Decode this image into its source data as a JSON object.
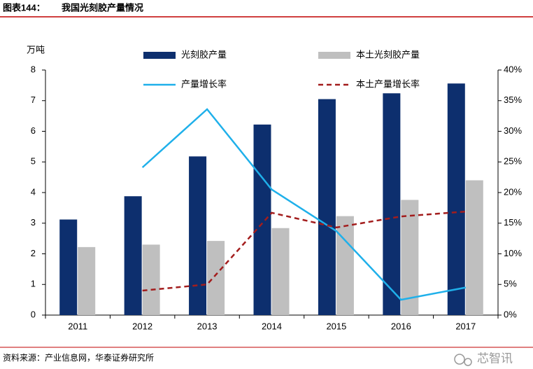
{
  "chart_data": {
    "type": "bar",
    "figure_label": "图表144：",
    "title": "我国光刻胶产量情况",
    "y_unit": "万吨",
    "categories": [
      "2011",
      "2012",
      "2013",
      "2014",
      "2015",
      "2016",
      "2017"
    ],
    "series": [
      {
        "name": "光刻胶产量",
        "type": "bar",
        "color": "#0d2f6e",
        "values": [
          3.12,
          3.88,
          5.18,
          6.22,
          7.05,
          7.24,
          7.56
        ]
      },
      {
        "name": "本土光刻胶产量",
        "type": "bar",
        "color": "#bfbfbf",
        "values": [
          2.22,
          2.3,
          2.42,
          2.84,
          3.23,
          3.76,
          4.4
        ]
      },
      {
        "name": "产量增长率",
        "type": "line",
        "axis": "y2",
        "color": "#1fb0ea",
        "dash": false,
        "values": [
          null,
          24.1,
          33.6,
          20.5,
          13.7,
          2.5,
          4.5
        ]
      },
      {
        "name": "本土产量增长率",
        "type": "line",
        "axis": "y2",
        "color": "#a31d1d",
        "dash": true,
        "values": [
          null,
          4.0,
          5.0,
          16.7,
          14.3,
          16.1,
          16.9
        ]
      }
    ],
    "ylim": [
      0,
      8
    ],
    "yticks": [
      0,
      1,
      2,
      3,
      4,
      5,
      6,
      7,
      8
    ],
    "y2lim": [
      0,
      40
    ],
    "y2ticks": [
      {
        "value": 0,
        "label": "0%"
      },
      {
        "value": 5,
        "label": "5%"
      },
      {
        "value": 10,
        "label": "10%"
      },
      {
        "value": 15,
        "label": "15%"
      },
      {
        "value": 20,
        "label": "20%"
      },
      {
        "value": 25,
        "label": "25%"
      },
      {
        "value": 30,
        "label": "30%"
      },
      {
        "value": 35,
        "label": "35%"
      },
      {
        "value": 40,
        "label": "40%"
      }
    ],
    "source": "资料来源：产业信息网，华泰证券研究所",
    "watermark": "芯智讯"
  }
}
